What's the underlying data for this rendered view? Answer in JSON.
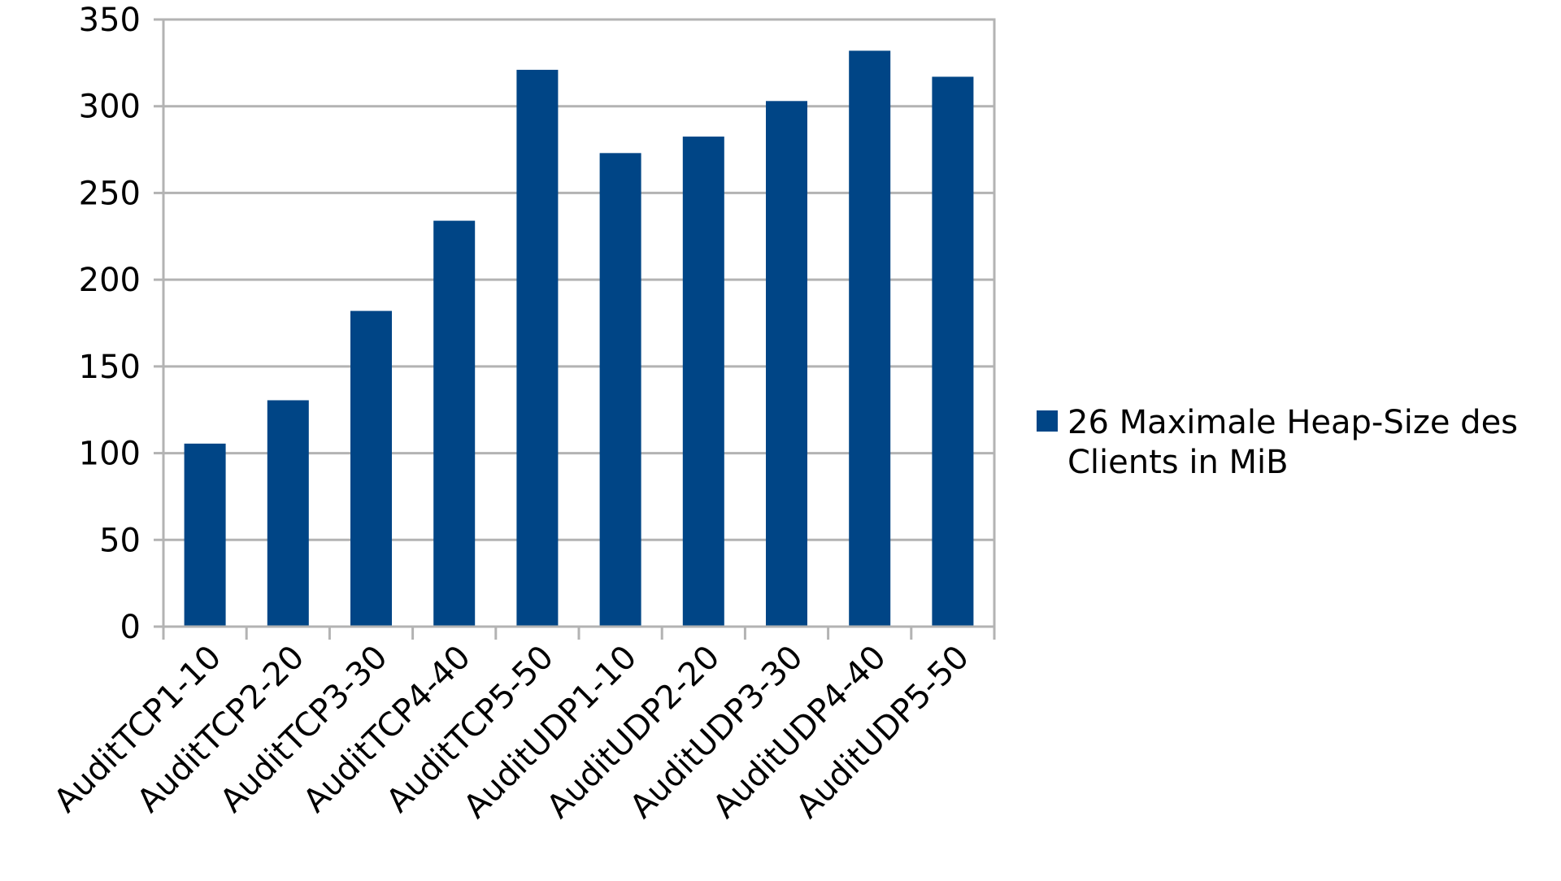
{
  "chart_data": {
    "type": "bar",
    "categories": [
      "AuditTCP1-10",
      "AuditTCP2-20",
      "AuditTCP3-30",
      "AuditTCP4-40",
      "AuditTCP5-50",
      "AuditUDP1-10",
      "AuditUDP2-20",
      "AuditUDP3-30",
      "AuditUDP4-40",
      "AuditUDP5-50"
    ],
    "series": [
      {
        "name": "26 Maximale Heap-Size des Clients in MiB",
        "legend_lines": [
          "26 Maximale Heap-Size des",
          "Clients in MiB"
        ],
        "color": "#004586",
        "values": [
          105.5,
          130.5,
          182.0,
          234.0,
          321.0,
          273.0,
          282.5,
          303.0,
          332.0,
          317.0
        ]
      }
    ],
    "ylim": [
      0,
      350
    ],
    "yticks": [
      "0",
      "50",
      "100",
      "150",
      "200",
      "250",
      "300",
      "350"
    ],
    "grid": true,
    "legend_position": "right"
  }
}
